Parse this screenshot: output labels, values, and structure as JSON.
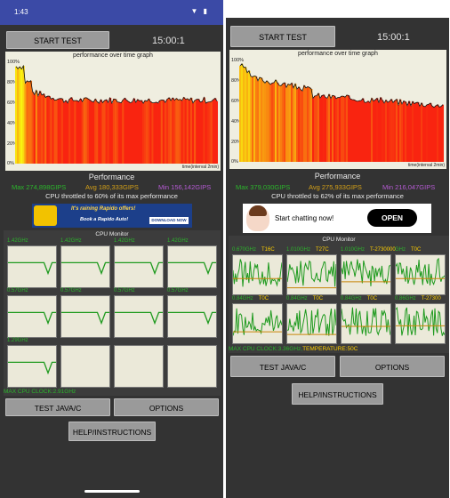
{
  "left": {
    "status_time": "1:43",
    "status_icons": "▼ ▮",
    "start_label": "START TEST",
    "timer": "15:00:1",
    "graph_title": "performance over time graph",
    "graph_xlabel": "time(interval 2min)",
    "y_ticks": [
      "100%",
      "80%",
      "60%",
      "40%",
      "20%",
      "0%"
    ],
    "perf_title": "Performance",
    "max": "Max 274,898GIPS",
    "avg": "Avg 180,333GIPS",
    "min": "Min 156,142GIPS",
    "throttle": "CPU throttled to 60% of its max performance",
    "ad_text1": "It's raining Rapido offers!",
    "ad_text2": "Book a Rapido Auto!",
    "ad_btn": "DOWNLOAD NOW",
    "cpu_title": "CPU Monitor",
    "cores": [
      {
        "label": "1.42GHz"
      },
      {
        "label": "1.42GHz"
      },
      {
        "label": "1.42GHz"
      },
      {
        "label": "1.42GHz"
      },
      {
        "label": "0.57GHz"
      },
      {
        "label": "0.57GHz"
      },
      {
        "label": "0.57GHz"
      },
      {
        "label": "0.57GHz"
      },
      {
        "label": "1.29GHz"
      },
      {
        "label": ""
      },
      {
        "label": ""
      },
      {
        "label": ""
      }
    ],
    "max_clock": "MAX CPU CLOCK:2.91GHz",
    "test_label": "TEST JAVA/C",
    "options_label": "OPTIONS",
    "help_label": "HELP/INSTRUCTIONS"
  },
  "right": {
    "start_label": "START TEST",
    "timer": "15:00:1",
    "graph_title": "performance over time graph",
    "graph_xlabel": "time(interval 2min)",
    "y_ticks": [
      "100%",
      "80%",
      "60%",
      "40%",
      "20%",
      "0%"
    ],
    "perf_title": "Performance",
    "max": "Max 379,030GIPS",
    "avg": "Avg 275,933GIPS",
    "min": "Min 216,047GIPS",
    "throttle": "CPU throttled to 62% of its max performance",
    "ad_text": "Start chatting now!",
    "ad_btn": "OPEN",
    "cpu_title": "CPU Monitor",
    "cores": [
      {
        "freq": "0.670GHz",
        "temp": "T16C"
      },
      {
        "freq": "1.010GHz",
        "temp": "T27C"
      },
      {
        "freq": "1.010GHz",
        "temp": "T-2730000"
      },
      {
        "freq": "GHz",
        "temp": "T0C"
      },
      {
        "freq": "0.84GHz",
        "temp": "T0C"
      },
      {
        "freq": "0.84GHz",
        "temp": "T0C"
      },
      {
        "freq": "0.84GHz",
        "temp": "T0C"
      },
      {
        "freq": "0.86GHz",
        "temp": "T-27300"
      }
    ],
    "max_clock": "MAX CPU CLOCK:3.36GHz,",
    "temperature": "TEMPERATURE:50C",
    "test_label": "TEST JAVA/C",
    "options_label": "OPTIONS",
    "help_label": "HELP/INSTRUCTIONS"
  },
  "colors": {
    "phone_bg": "#333333",
    "status_bar": "#3b4aa6",
    "button": "#9a9a9a",
    "graph_bg": "#efeee0",
    "max_green": "#2cb52c",
    "avg_yellow": "#d4a017",
    "min_purple": "#b45ad2"
  }
}
